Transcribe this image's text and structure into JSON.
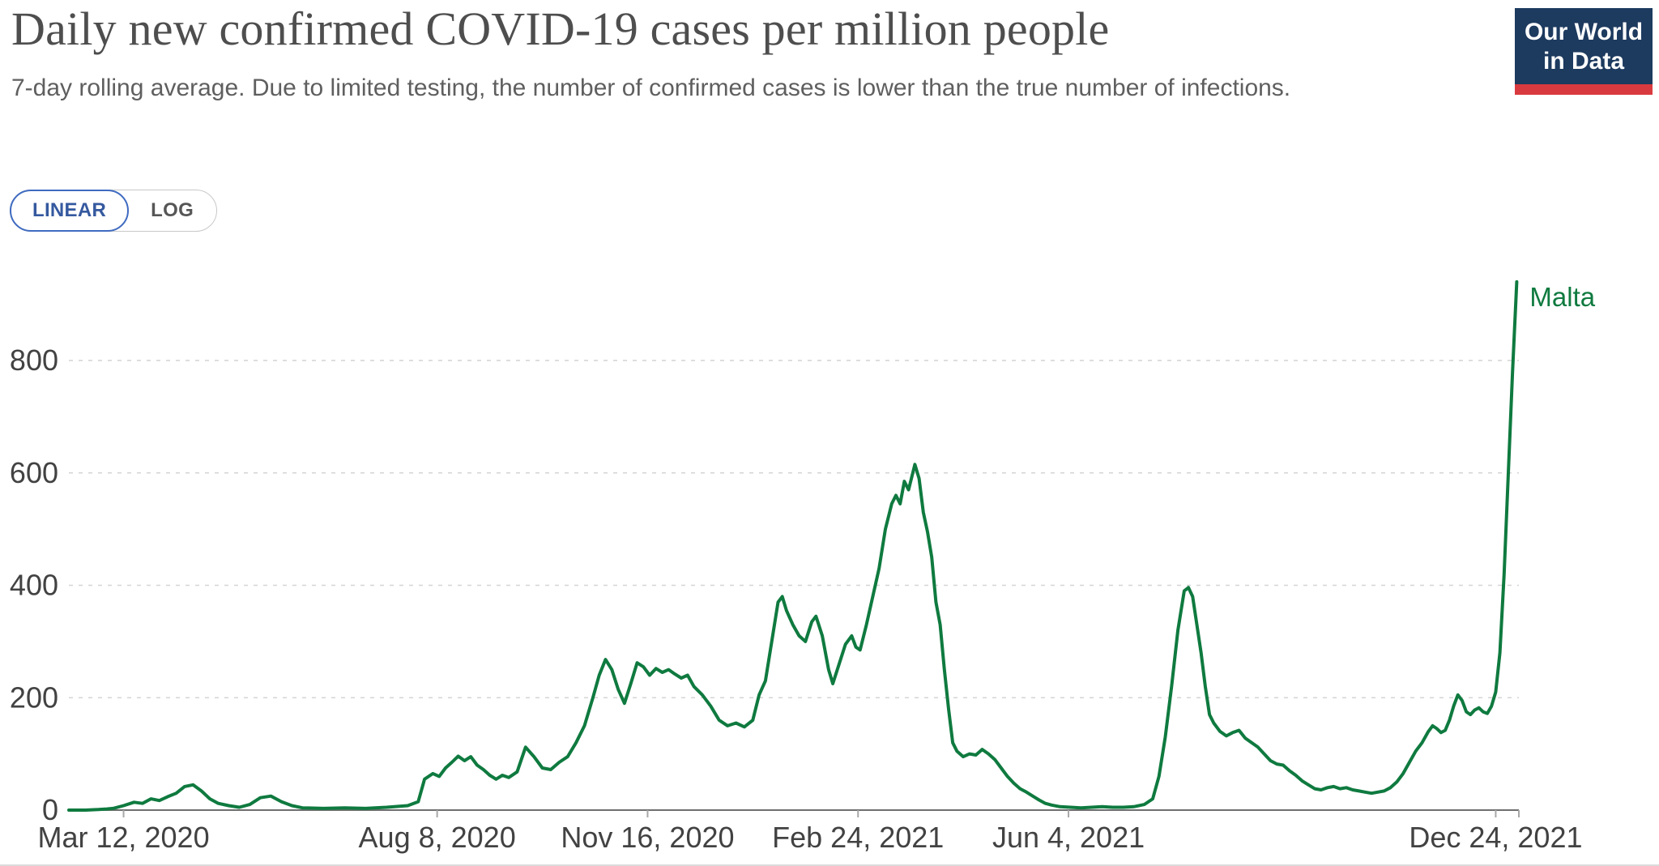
{
  "header": {
    "title": "Daily new confirmed COVID-19 cases per million people",
    "subtitle": "7-day rolling average. Due to limited testing, the number of confirmed cases is lower than the true number of infections."
  },
  "logo": {
    "line1": "Our World",
    "line2": "in Data",
    "bg_color": "#1d3a5f",
    "stripe_color": "#d93a3f"
  },
  "toggle": {
    "linear_label": "LINEAR",
    "log_label": "LOG",
    "selected": "LINEAR",
    "accent_color": "#3f6bc1"
  },
  "chart_data": {
    "type": "line",
    "title": "Daily new confirmed COVID-19 cases per million people",
    "xlabel": "",
    "ylabel": "",
    "grid": true,
    "background": "#ffffff",
    "ylim": [
      0,
      960
    ],
    "y_ticks": [
      0,
      200,
      400,
      600,
      800
    ],
    "x_start_date": "2020-02-15",
    "x_end_day": 689,
    "x_ticks": [
      {
        "day": 26,
        "label": "Mar 12, 2020"
      },
      {
        "day": 175,
        "label": "Aug 8, 2020"
      },
      {
        "day": 275,
        "label": "Nov 16, 2020"
      },
      {
        "day": 375,
        "label": "Feb 24, 2021"
      },
      {
        "day": 475,
        "label": "Jun 4, 2021"
      },
      {
        "day": 678,
        "label": "Dec 24, 2021"
      }
    ],
    "end_label": "Malta",
    "series": [
      {
        "name": "Malta",
        "color": "#0f7a3f",
        "points": [
          [
            0,
            0
          ],
          [
            8,
            0
          ],
          [
            14,
            1
          ],
          [
            18,
            2
          ],
          [
            21,
            3
          ],
          [
            26,
            8
          ],
          [
            31,
            14
          ],
          [
            35,
            12
          ],
          [
            39,
            20
          ],
          [
            43,
            17
          ],
          [
            47,
            24
          ],
          [
            51,
            30
          ],
          [
            55,
            42
          ],
          [
            59,
            45
          ],
          [
            63,
            34
          ],
          [
            67,
            20
          ],
          [
            71,
            12
          ],
          [
            76,
            8
          ],
          [
            81,
            5
          ],
          [
            86,
            10
          ],
          [
            91,
            22
          ],
          [
            96,
            25
          ],
          [
            101,
            15
          ],
          [
            106,
            8
          ],
          [
            111,
            4
          ],
          [
            121,
            3
          ],
          [
            131,
            4
          ],
          [
            141,
            3
          ],
          [
            151,
            5
          ],
          [
            161,
            8
          ],
          [
            166,
            15
          ],
          [
            169,
            55
          ],
          [
            173,
            65
          ],
          [
            176,
            60
          ],
          [
            179,
            75
          ],
          [
            182,
            85
          ],
          [
            185,
            96
          ],
          [
            188,
            88
          ],
          [
            191,
            95
          ],
          [
            194,
            80
          ],
          [
            197,
            72
          ],
          [
            200,
            62
          ],
          [
            203,
            55
          ],
          [
            206,
            62
          ],
          [
            209,
            58
          ],
          [
            213,
            68
          ],
          [
            217,
            112
          ],
          [
            221,
            95
          ],
          [
            225,
            75
          ],
          [
            229,
            72
          ],
          [
            233,
            85
          ],
          [
            237,
            95
          ],
          [
            241,
            120
          ],
          [
            245,
            150
          ],
          [
            249,
            200
          ],
          [
            252,
            240
          ],
          [
            255,
            268
          ],
          [
            258,
            250
          ],
          [
            261,
            215
          ],
          [
            264,
            190
          ],
          [
            267,
            225
          ],
          [
            270,
            262
          ],
          [
            273,
            255
          ],
          [
            276,
            240
          ],
          [
            279,
            252
          ],
          [
            282,
            245
          ],
          [
            285,
            250
          ],
          [
            288,
            242
          ],
          [
            291,
            235
          ],
          [
            294,
            240
          ],
          [
            297,
            220
          ],
          [
            301,
            205
          ],
          [
            305,
            185
          ],
          [
            309,
            160
          ],
          [
            313,
            150
          ],
          [
            317,
            155
          ],
          [
            321,
            148
          ],
          [
            325,
            160
          ],
          [
            328,
            205
          ],
          [
            331,
            230
          ],
          [
            334,
            300
          ],
          [
            337,
            370
          ],
          [
            339,
            380
          ],
          [
            341,
            355
          ],
          [
            344,
            330
          ],
          [
            347,
            310
          ],
          [
            350,
            300
          ],
          [
            353,
            335
          ],
          [
            355,
            345
          ],
          [
            358,
            310
          ],
          [
            361,
            250
          ],
          [
            363,
            225
          ],
          [
            366,
            260
          ],
          [
            369,
            295
          ],
          [
            372,
            310
          ],
          [
            374,
            290
          ],
          [
            376,
            285
          ],
          [
            379,
            330
          ],
          [
            382,
            380
          ],
          [
            385,
            430
          ],
          [
            388,
            500
          ],
          [
            391,
            545
          ],
          [
            393,
            560
          ],
          [
            395,
            545
          ],
          [
            397,
            585
          ],
          [
            399,
            570
          ],
          [
            401,
            600
          ],
          [
            402,
            615
          ],
          [
            404,
            590
          ],
          [
            406,
            530
          ],
          [
            408,
            495
          ],
          [
            410,
            450
          ],
          [
            412,
            370
          ],
          [
            414,
            330
          ],
          [
            416,
            250
          ],
          [
            418,
            180
          ],
          [
            420,
            120
          ],
          [
            422,
            105
          ],
          [
            425,
            95
          ],
          [
            428,
            100
          ],
          [
            431,
            98
          ],
          [
            434,
            108
          ],
          [
            437,
            100
          ],
          [
            440,
            90
          ],
          [
            443,
            75
          ],
          [
            446,
            60
          ],
          [
            449,
            48
          ],
          [
            452,
            38
          ],
          [
            455,
            32
          ],
          [
            458,
            25
          ],
          [
            461,
            18
          ],
          [
            464,
            12
          ],
          [
            467,
            9
          ],
          [
            471,
            6
          ],
          [
            476,
            5
          ],
          [
            481,
            4
          ],
          [
            486,
            5
          ],
          [
            491,
            6
          ],
          [
            496,
            5
          ],
          [
            501,
            5
          ],
          [
            506,
            6
          ],
          [
            511,
            10
          ],
          [
            515,
            20
          ],
          [
            518,
            60
          ],
          [
            521,
            130
          ],
          [
            524,
            220
          ],
          [
            527,
            320
          ],
          [
            530,
            390
          ],
          [
            532,
            396
          ],
          [
            534,
            380
          ],
          [
            536,
            330
          ],
          [
            538,
            280
          ],
          [
            540,
            220
          ],
          [
            542,
            170
          ],
          [
            544,
            155
          ],
          [
            547,
            140
          ],
          [
            550,
            132
          ],
          [
            553,
            138
          ],
          [
            556,
            142
          ],
          [
            559,
            128
          ],
          [
            562,
            120
          ],
          [
            565,
            112
          ],
          [
            568,
            100
          ],
          [
            571,
            88
          ],
          [
            574,
            82
          ],
          [
            577,
            80
          ],
          [
            580,
            70
          ],
          [
            583,
            62
          ],
          [
            586,
            52
          ],
          [
            589,
            45
          ],
          [
            592,
            38
          ],
          [
            595,
            36
          ],
          [
            598,
            40
          ],
          [
            601,
            42
          ],
          [
            604,
            38
          ],
          [
            607,
            40
          ],
          [
            610,
            36
          ],
          [
            613,
            34
          ],
          [
            616,
            32
          ],
          [
            619,
            30
          ],
          [
            622,
            32
          ],
          [
            625,
            34
          ],
          [
            628,
            40
          ],
          [
            631,
            50
          ],
          [
            634,
            65
          ],
          [
            637,
            85
          ],
          [
            640,
            105
          ],
          [
            643,
            120
          ],
          [
            646,
            140
          ],
          [
            648,
            150
          ],
          [
            650,
            145
          ],
          [
            652,
            138
          ],
          [
            654,
            142
          ],
          [
            656,
            160
          ],
          [
            658,
            185
          ],
          [
            660,
            205
          ],
          [
            662,
            195
          ],
          [
            664,
            175
          ],
          [
            666,
            170
          ],
          [
            668,
            178
          ],
          [
            670,
            182
          ],
          [
            672,
            175
          ],
          [
            674,
            172
          ],
          [
            676,
            185
          ],
          [
            678,
            210
          ],
          [
            680,
            280
          ],
          [
            682,
            420
          ],
          [
            684,
            600
          ],
          [
            686,
            780
          ],
          [
            688,
            940
          ]
        ]
      }
    ]
  }
}
